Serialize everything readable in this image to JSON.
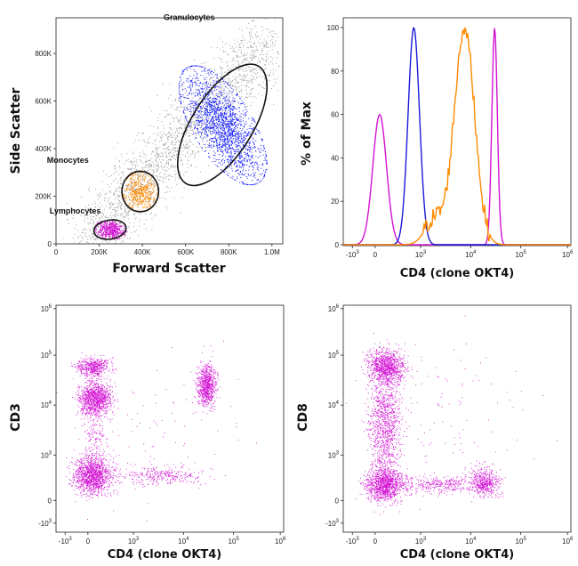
{
  "chart_data": [
    {
      "type": "scatter",
      "xlabel": "Forward Scatter",
      "ylabel": "Side Scatter",
      "x_ticks": [
        "0",
        "200K",
        "400K",
        "600K",
        "800K",
        "1.0M"
      ],
      "y_ticks": [
        "0",
        "200K",
        "400K",
        "600K",
        "800K"
      ],
      "xlim": [
        0,
        1050000
      ],
      "ylim": [
        0,
        950000
      ],
      "gates": [
        {
          "name": "Granulocytes",
          "color": "#0a14ff",
          "center": [
            770000,
            500000
          ],
          "rx": 140000,
          "ry": 290000,
          "rotation_deg": 32
        },
        {
          "name": "Monocytes",
          "color": "#ff8a00",
          "center": [
            390000,
            220000
          ],
          "rx": 85000,
          "ry": 85000,
          "rotation_deg": 0
        },
        {
          "name": "Lymphocytes",
          "color": "#d313d3",
          "center": [
            250000,
            60000
          ],
          "rx": 75000,
          "ry": 40000,
          "rotation_deg": -8
        }
      ]
    },
    {
      "type": "line",
      "xlabel": "CD4 (clone OKT4)",
      "ylabel": "% of Max",
      "x_ticks": [
        "-10^3",
        "0",
        "10^3",
        "10^4",
        "10^5",
        "10^6"
      ],
      "y_ticks": [
        "0",
        "20",
        "40",
        "60",
        "80",
        "100"
      ],
      "ylim": [
        0,
        100
      ],
      "series": [
        {
          "color": "#d313d3",
          "peaks": [
            {
              "x": 100,
              "height": 60
            },
            {
              "x": 30000,
              "height": 100
            }
          ]
        },
        {
          "color": "#1a1adc",
          "peaks": [
            {
              "x": 850,
              "height": 100
            }
          ]
        },
        {
          "color": "#ff8a00",
          "peaks": [
            {
              "x": 7500,
              "height": 100
            }
          ]
        }
      ]
    },
    {
      "type": "scatter",
      "xlabel": "CD4 (clone OKT4)",
      "ylabel": "CD3",
      "x_ticks": [
        "-10^3",
        "0",
        "10^3",
        "10^4",
        "10^5",
        "10^6"
      ],
      "y_ticks": [
        "-10^3",
        "0",
        "10^3",
        "10^4",
        "10^5",
        "10^6"
      ],
      "clusters": [
        {
          "x": 50,
          "y": 20000,
          "color": "#d313d3"
        },
        {
          "x": 50,
          "y": 60000,
          "color": "#d313d3"
        },
        {
          "x": 30000,
          "y": 25000,
          "color": "#d313d3"
        },
        {
          "x": 50,
          "y": 50,
          "color": "#d313d3"
        },
        {
          "x": 3000,
          "y": 200,
          "color": "#d313d3"
        }
      ]
    },
    {
      "type": "scatter",
      "xlabel": "CD4 (clone OKT4)",
      "ylabel": "CD8",
      "x_ticks": [
        "-10^3",
        "0",
        "10^3",
        "10^4",
        "10^5",
        "10^6"
      ],
      "y_ticks": [
        "-10^3",
        "0",
        "10^3",
        "10^4",
        "10^5",
        "10^6"
      ],
      "clusters": [
        {
          "x": 50,
          "y": 40000,
          "color": "#d313d3"
        },
        {
          "x": 50,
          "y": 50,
          "color": "#d313d3"
        },
        {
          "x": 30000,
          "y": 50,
          "color": "#d313d3"
        },
        {
          "x": 3000,
          "y": 20,
          "color": "#d313d3"
        }
      ]
    }
  ]
}
